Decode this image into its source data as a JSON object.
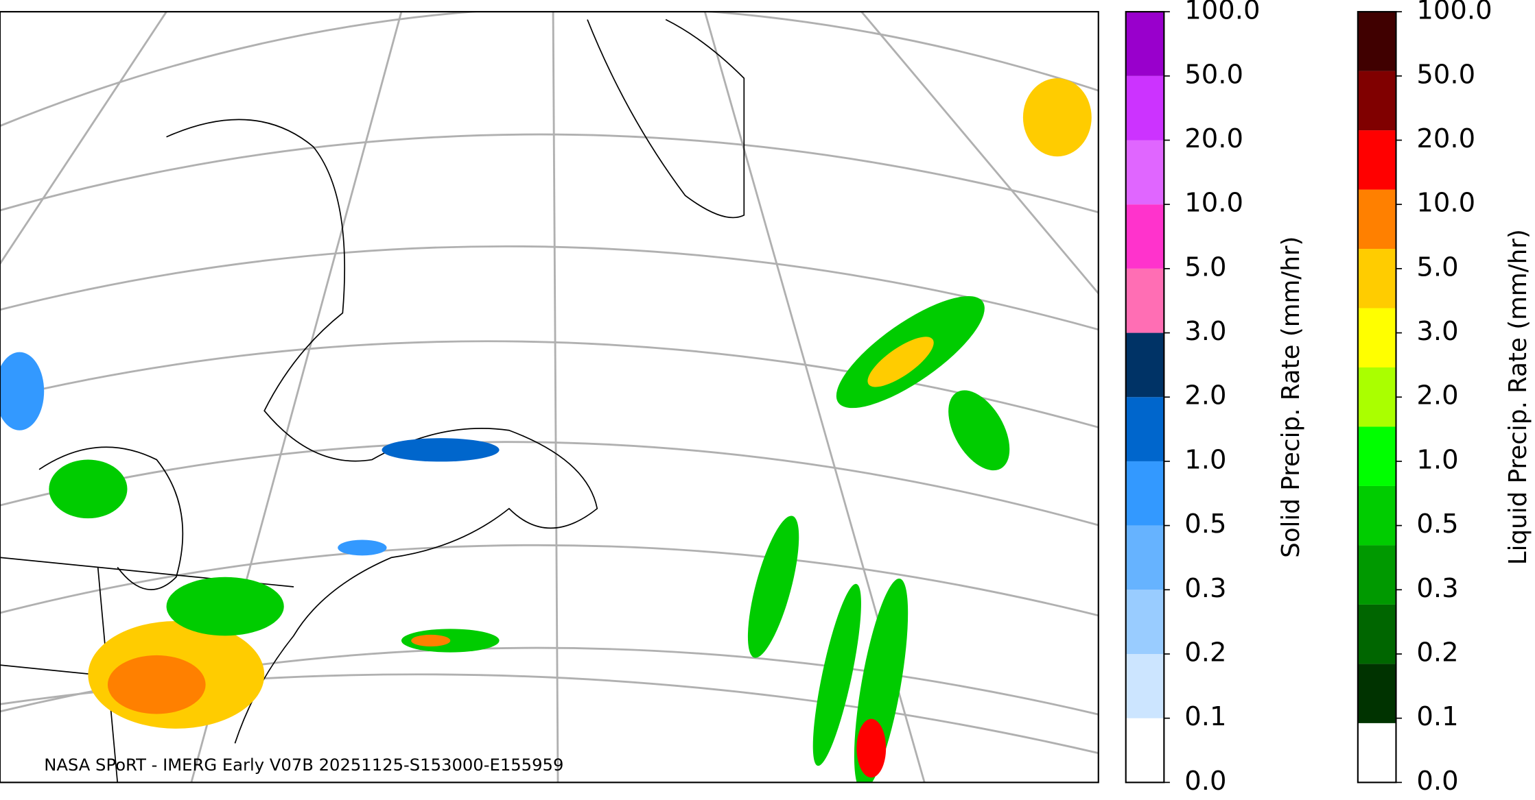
{
  "map": {
    "caption": "NASA SPoRT - IMERG Early V07B 20251125-S153000-E155959"
  },
  "colorbars": [
    {
      "label": "Solid Precip. Rate (mm/hr)",
      "ticks": [
        "0.0",
        "0.1",
        "0.2",
        "0.3",
        "0.5",
        "1.0",
        "2.0",
        "3.0",
        "5.0",
        "10.0",
        "20.0",
        "50.0",
        "100.0"
      ],
      "colors": [
        "#ffffff",
        "#cce5ff",
        "#99ccff",
        "#66b3ff",
        "#3399ff",
        "#0066cc",
        "#003366",
        "#ff6eb4",
        "#ff33cc",
        "#e066ff",
        "#cc33ff",
        "#9900cc"
      ]
    },
    {
      "label": "Liquid Precip. Rate (mm/hr)",
      "ticks": [
        "0.0",
        "0.1",
        "0.2",
        "0.3",
        "0.5",
        "1.0",
        "2.0",
        "3.0",
        "5.0",
        "10.0",
        "20.0",
        "50.0",
        "100.0"
      ],
      "colors": [
        "#ffffff",
        "#003300",
        "#006600",
        "#009900",
        "#00cc00",
        "#00ff00",
        "#aaff00",
        "#ffff00",
        "#ffcc00",
        "#ff8000",
        "#ff0000",
        "#800000",
        "#400000"
      ]
    }
  ]
}
